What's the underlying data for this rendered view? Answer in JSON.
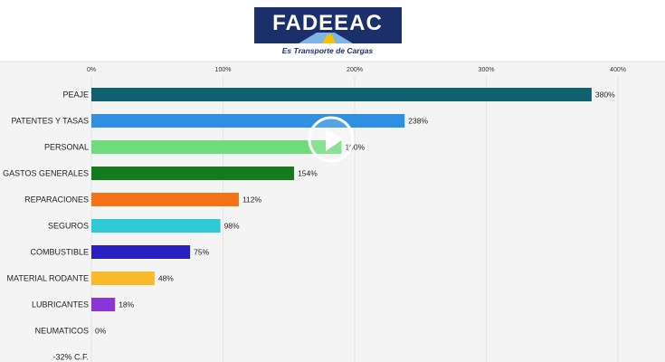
{
  "logo": {
    "name": "FADEEAC",
    "tagline": "Es Transporte de Cargas",
    "colors": {
      "navy": "#1b2f6b",
      "light_blue": "#7fb4e6",
      "yellow": "#f2c400"
    }
  },
  "player": {
    "icon": "play-icon"
  },
  "chart_data": {
    "type": "bar",
    "orientation": "horizontal",
    "x_ticks": [
      "0%",
      "100%",
      "200%",
      "300%",
      "400%"
    ],
    "xlim": [
      0,
      400
    ],
    "grid": true,
    "categories": [
      "PEAJE",
      "PATENTES Y TASAS",
      "PERSONAL",
      "GASTOS GENERALES",
      "REPARACIONES",
      "SEGUROS",
      "COMBUSTIBLE",
      "MATERIAL RODANTE",
      "LUBRICANTES",
      "NEUMATICOS",
      "-32% C.F."
    ],
    "values": [
      380,
      238,
      190,
      154,
      112,
      98,
      75,
      48,
      18,
      0,
      null
    ],
    "value_labels": [
      "380%",
      "238%",
      "190%",
      "154%",
      "112%",
      "98%",
      "75%",
      "48%",
      "18%",
      "0%",
      ""
    ],
    "colors": [
      "#0f6070",
      "#2f8fe0",
      "#6fdc7c",
      "#137a1e",
      "#f47316",
      "#2ecad6",
      "#2a1fc0",
      "#f8b92a",
      "#8a35d8",
      "#999999",
      "#999999"
    ]
  }
}
